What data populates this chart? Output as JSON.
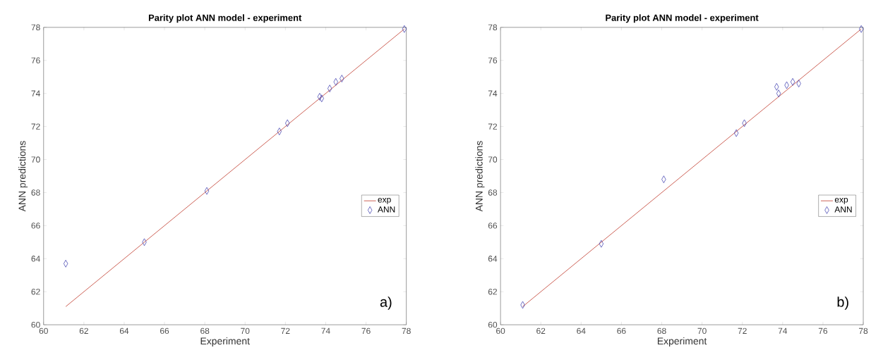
{
  "chart_data": [
    {
      "type": "scatter",
      "title": "Parity plot ANN model - experiment",
      "xlabel": "Experiment",
      "ylabel": "ANN predictions",
      "xlim": [
        60,
        78
      ],
      "ylim": [
        60,
        78
      ],
      "xticks": [
        60,
        62,
        64,
        66,
        68,
        70,
        72,
        74,
        76,
        78
      ],
      "yticks": [
        60,
        62,
        64,
        66,
        68,
        70,
        72,
        74,
        76,
        78
      ],
      "legend": "right",
      "annotations": [
        "a)"
      ],
      "series": [
        {
          "name": "exp",
          "type": "line",
          "color": "#c0392b",
          "x": [
            61.1,
            77.9
          ],
          "values": [
            61.1,
            77.9
          ]
        },
        {
          "name": "ANN",
          "marker": "diamond",
          "color": "#3333aa",
          "x": [
            61.1,
            65.0,
            68.1,
            71.7,
            72.1,
            73.7,
            73.8,
            74.2,
            74.5,
            74.8,
            77.9
          ],
          "values": [
            63.7,
            65.0,
            68.1,
            71.7,
            72.2,
            73.8,
            73.7,
            74.3,
            74.7,
            74.9,
            77.9
          ]
        }
      ]
    },
    {
      "type": "scatter",
      "title": "Parity plot ANN model - experiment",
      "xlabel": "Experiment",
      "ylabel": "ANN predictions",
      "xlim": [
        60,
        78
      ],
      "ylim": [
        60,
        78
      ],
      "xticks": [
        60,
        62,
        64,
        66,
        68,
        70,
        72,
        74,
        76,
        78
      ],
      "yticks": [
        60,
        62,
        64,
        66,
        68,
        70,
        72,
        74,
        76,
        78
      ],
      "legend": "right",
      "annotations": [
        "b)"
      ],
      "series": [
        {
          "name": "exp",
          "type": "line",
          "color": "#c0392b",
          "x": [
            61.1,
            77.9
          ],
          "values": [
            61.1,
            77.9
          ]
        },
        {
          "name": "ANN",
          "marker": "diamond",
          "color": "#3333aa",
          "x": [
            61.1,
            65.0,
            68.1,
            71.7,
            72.1,
            73.7,
            73.8,
            74.2,
            74.5,
            74.8,
            77.9
          ],
          "values": [
            61.2,
            64.9,
            68.8,
            71.6,
            72.2,
            74.4,
            74.0,
            74.5,
            74.7,
            74.6,
            77.9
          ]
        }
      ]
    }
  ]
}
